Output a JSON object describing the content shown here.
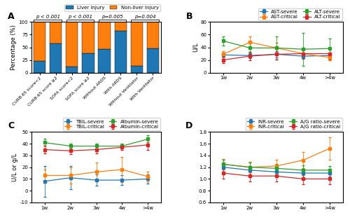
{
  "chart_data": [
    {
      "type": "bar",
      "stacked": true,
      "title": "A",
      "categories": [
        "CURB-65 score<2",
        "CURB-65 score ≥2",
        "SOFA score<2",
        "SOFA score ≥2",
        "Without ARDS",
        "With ARDS",
        "Without Ventilator",
        "With Ventilator"
      ],
      "series": [
        {
          "name": "Liver injury",
          "values": [
            23,
            58,
            12,
            38,
            47,
            82,
            13,
            48
          ]
        },
        {
          "name": "Non-liver injury",
          "values": [
            77,
            42,
            88,
            62,
            53,
            18,
            87,
            52
          ]
        }
      ],
      "y_label": "Percentage (%)",
      "ylim": [
        0,
        100
      ],
      "yticks": [
        0,
        25,
        50,
        75,
        100
      ],
      "annotations": [
        "p < 0.001",
        "p < 0.001",
        "p=0.005",
        "p=0.004"
      ]
    },
    {
      "type": "line",
      "title": "B",
      "marker": "square",
      "categories": [
        "1w",
        "2w",
        "3w",
        "4w",
        ">4w"
      ],
      "series": [
        {
          "name": "AST-severe",
          "values": [
            28,
            27,
            29,
            26,
            27
          ],
          "errors": [
            4,
            4,
            5,
            4,
            3
          ]
        },
        {
          "name": "AST-critical",
          "values": [
            29,
            48,
            39,
            30,
            24
          ],
          "errors": [
            5,
            9,
            8,
            7,
            4
          ]
        },
        {
          "name": "ALT-severe",
          "values": [
            50,
            39,
            39,
            37,
            38
          ],
          "errors": [
            7,
            7,
            18,
            26,
            16
          ]
        },
        {
          "name": "ALT-critical",
          "values": [
            20,
            26,
            29,
            30,
            30
          ],
          "errors": [
            5,
            7,
            8,
            7,
            9
          ]
        }
      ],
      "y_label": "U/L",
      "ylim": [
        0,
        80
      ],
      "yticks": [
        0,
        20,
        40,
        60,
        80
      ]
    },
    {
      "type": "line",
      "title": "C",
      "marker": "square",
      "categories": [
        "1w",
        "2w",
        "3w",
        "4w",
        ">4w"
      ],
      "series": [
        {
          "name": "TBIL-severe",
          "values": [
            8,
            11,
            9,
            9,
            10
          ],
          "errors": [
            13,
            10,
            5,
            4,
            4
          ]
        },
        {
          "name": "TBIL-critical",
          "values": [
            13,
            13,
            16,
            18,
            12
          ],
          "errors": [
            5,
            7,
            8,
            11,
            4
          ]
        },
        {
          "name": "Albumin-severe",
          "values": [
            41,
            38,
            38,
            38,
            44
          ],
          "errors": [
            3,
            2,
            2,
            2,
            3
          ]
        },
        {
          "name": "Albumin-critical",
          "values": [
            35,
            34,
            35,
            37,
            39
          ],
          "errors": [
            3,
            3,
            3,
            2,
            4
          ]
        }
      ],
      "y_label": "U/L or g/L",
      "ylim": [
        -10,
        50
      ],
      "yticks": [
        -10,
        0,
        10,
        20,
        30,
        40,
        50
      ]
    },
    {
      "type": "line",
      "title": "D",
      "marker": "square",
      "categories": [
        "1w",
        "2w",
        "3w",
        "4w",
        ">4w"
      ],
      "series": [
        {
          "name": "INR-severe",
          "values": [
            1.2,
            1.15,
            1.12,
            1.1,
            1.1
          ],
          "errors": [
            0.08,
            0.07,
            0.07,
            0.07,
            0.06
          ]
        },
        {
          "name": "INR-critical",
          "values": [
            1.25,
            1.2,
            1.22,
            1.32,
            1.52
          ],
          "errors": [
            0.09,
            0.09,
            0.11,
            0.14,
            0.19
          ]
        },
        {
          "name": "A/G ratio-severe",
          "values": [
            1.25,
            1.2,
            1.18,
            1.15,
            1.15
          ],
          "errors": [
            0.08,
            0.08,
            0.08,
            0.08,
            0.07
          ]
        },
        {
          "name": "A/G ratio-critical",
          "values": [
            1.1,
            1.05,
            1.05,
            1.0,
            1.0
          ],
          "errors": [
            0.09,
            0.09,
            0.09,
            0.09,
            0.09
          ]
        }
      ],
      "ylim": [
        0.6,
        1.8
      ],
      "yticks": [
        0.6,
        0.8,
        {
          "value": 1,
          "label": "1.0"
        },
        1.2,
        1.4,
        1.6,
        1.8
      ]
    }
  ]
}
